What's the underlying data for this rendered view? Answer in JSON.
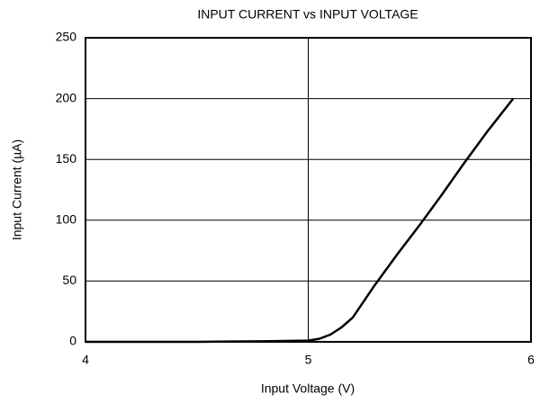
{
  "chart_data": {
    "type": "line",
    "title": "INPUT CURRENT vs INPUT VOLTAGE",
    "x_label": "Input Voltage (V)",
    "y_label": "Input Current (µA)",
    "x": [
      4,
      4.5,
      4.8,
      5.0,
      5.05,
      5.1,
      5.15,
      5.2,
      5.3,
      5.4,
      5.5,
      5.6,
      5.7,
      5.8,
      5.92
    ],
    "series": [
      {
        "name": "Input Current",
        "color": "#000000",
        "values": [
          0,
          0,
          0.5,
          1,
          2.5,
          6,
          12,
          20,
          47,
          72,
          96,
          121,
          147,
          172,
          200
        ]
      }
    ],
    "xlim": [
      4,
      6
    ],
    "ylim": [
      0,
      250
    ],
    "xticks": [
      4,
      5,
      6
    ],
    "yticks": [
      0,
      50,
      100,
      150,
      200,
      250
    ],
    "grid": true
  }
}
